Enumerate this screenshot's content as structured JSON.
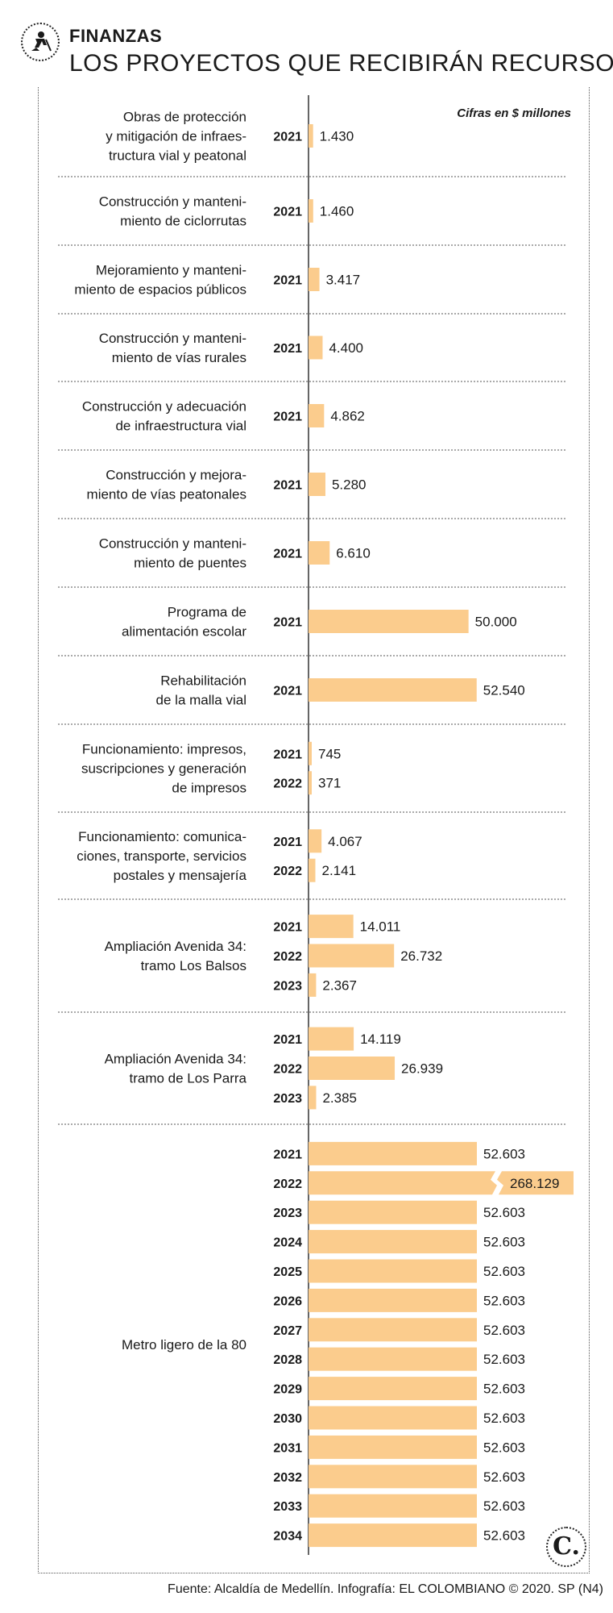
{
  "header": {
    "kicker": "FINANZAS",
    "title": "LOS PROYECTOS QUE RECIBIRÁN RECURSOS",
    "icon": "worker-shovel-icon"
  },
  "note": "Cifras en $ millones",
  "footer": "Fuente: Alcaldía de Medellín. Infografía: EL COLOMBIANO © 2020. SP (N4)",
  "logo_text": "C.",
  "colors": {
    "bar": "#fbcc8d",
    "divider": "#555555"
  },
  "chart_data": {
    "type": "bar",
    "orientation": "horizontal",
    "unit": "Cifras en $ millones",
    "axis_break": {
      "year": "2022",
      "project": "Metro ligero de la 80"
    },
    "projects": [
      {
        "lines": [
          "Obras de protección",
          "y mitigación de infraes-",
          "tructura vial y peatonal"
        ],
        "years": [
          {
            "year": "2021",
            "value": 1430,
            "label": "1.430"
          }
        ]
      },
      {
        "lines": [
          "Construcción y manteni-",
          "miento de ciclorrutas"
        ],
        "years": [
          {
            "year": "2021",
            "value": 1460,
            "label": "1.460"
          }
        ]
      },
      {
        "lines": [
          "Mejoramiento y manteni-",
          "miento de espacios públicos"
        ],
        "years": [
          {
            "year": "2021",
            "value": 3417,
            "label": "3.417"
          }
        ]
      },
      {
        "lines": [
          "Construcción y manteni-",
          "miento de vías rurales"
        ],
        "years": [
          {
            "year": "2021",
            "value": 4400,
            "label": "4.400"
          }
        ]
      },
      {
        "lines": [
          "Construcción y adecuación",
          "de infraestructura vial"
        ],
        "years": [
          {
            "year": "2021",
            "value": 4862,
            "label": "4.862"
          }
        ]
      },
      {
        "lines": [
          "Construcción y mejora-",
          "miento de vías peatonales"
        ],
        "years": [
          {
            "year": "2021",
            "value": 5280,
            "label": "5.280"
          }
        ]
      },
      {
        "lines": [
          "Construcción y manteni-",
          "miento de puentes"
        ],
        "years": [
          {
            "year": "2021",
            "value": 6610,
            "label": "6.610"
          }
        ]
      },
      {
        "lines": [
          "Programa de",
          "alimentación escolar"
        ],
        "years": [
          {
            "year": "2021",
            "value": 50000,
            "label": "50.000"
          }
        ]
      },
      {
        "lines": [
          "Rehabilitación",
          "de la malla vial"
        ],
        "years": [
          {
            "year": "2021",
            "value": 52540,
            "label": "52.540"
          }
        ]
      },
      {
        "lines": [
          "Funcionamiento: impresos,",
          "suscripciones y generación",
          "de impresos"
        ],
        "years": [
          {
            "year": "2021",
            "value": 745,
            "label": "745"
          },
          {
            "year": "2022",
            "value": 371,
            "label": "371"
          }
        ]
      },
      {
        "lines": [
          "Funcionamiento: comunica-",
          "ciones, transporte, servicios",
          "postales y mensajería"
        ],
        "years": [
          {
            "year": "2021",
            "value": 4067,
            "label": "4.067"
          },
          {
            "year": "2022",
            "value": 2141,
            "label": "2.141"
          }
        ]
      },
      {
        "lines": [
          "Ampliación Avenida 34:",
          "tramo Los Balsos"
        ],
        "years": [
          {
            "year": "2021",
            "value": 14011,
            "label": "14.011"
          },
          {
            "year": "2022",
            "value": 26732,
            "label": "26.732"
          },
          {
            "year": "2023",
            "value": 2367,
            "label": "2.367"
          }
        ]
      },
      {
        "lines": [
          "Ampliación Avenida 34:",
          "tramo de Los Parra"
        ],
        "years": [
          {
            "year": "2021",
            "value": 14119,
            "label": "14.119"
          },
          {
            "year": "2022",
            "value": 26939,
            "label": "26.939"
          },
          {
            "year": "2023",
            "value": 2385,
            "label": "2.385"
          }
        ]
      },
      {
        "lines": [
          "Metro ligero de la 80"
        ],
        "years": [
          {
            "year": "2021",
            "value": 52603,
            "label": "52.603"
          },
          {
            "year": "2022",
            "value": 268129,
            "label": "268.129"
          },
          {
            "year": "2023",
            "value": 52603,
            "label": "52.603"
          },
          {
            "year": "2024",
            "value": 52603,
            "label": "52.603"
          },
          {
            "year": "2025",
            "value": 52603,
            "label": "52.603"
          },
          {
            "year": "2026",
            "value": 52603,
            "label": "52.603"
          },
          {
            "year": "2027",
            "value": 52603,
            "label": "52.603"
          },
          {
            "year": "2028",
            "value": 52603,
            "label": "52.603"
          },
          {
            "year": "2029",
            "value": 52603,
            "label": "52.603"
          },
          {
            "year": "2030",
            "value": 52603,
            "label": "52.603"
          },
          {
            "year": "2031",
            "value": 52603,
            "label": "52.603"
          },
          {
            "year": "2032",
            "value": 52603,
            "label": "52.603"
          },
          {
            "year": "2033",
            "value": 52603,
            "label": "52.603"
          },
          {
            "year": "2034",
            "value": 52603,
            "label": "52.603"
          }
        ]
      }
    ]
  }
}
